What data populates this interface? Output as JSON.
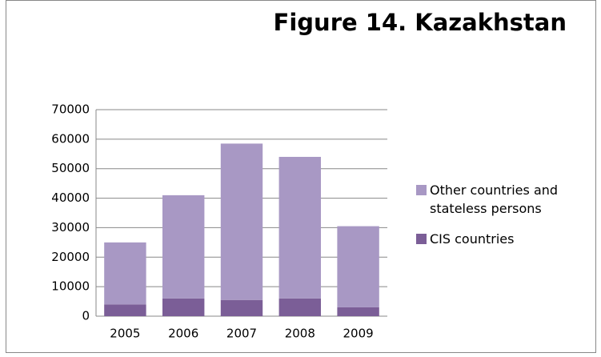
{
  "chart_data": {
    "type": "stacked-bar",
    "title": "Figure  14. Kazakhstan",
    "categories": [
      "2005",
      "2006",
      "2007",
      "2008",
      "2009"
    ],
    "series": [
      {
        "name": "CIS  countries",
        "color": "#7b5e97",
        "values": [
          4000,
          6000,
          5500,
          6000,
          3000
        ]
      },
      {
        "name": "Other countries and stateless persons",
        "color": "#a898c4",
        "values": [
          21000,
          35000,
          53000,
          48000,
          27500
        ]
      }
    ],
    "ylim": [
      0,
      70000
    ],
    "yticks": [
      0,
      10000,
      20000,
      30000,
      40000,
      50000,
      60000,
      70000
    ],
    "grid": true
  }
}
